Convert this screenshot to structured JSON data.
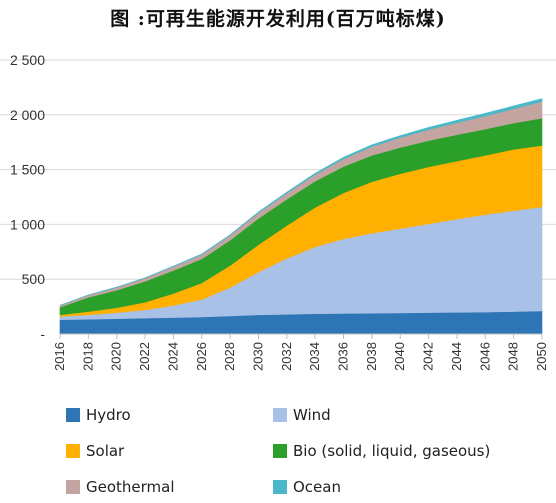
{
  "chart_data": {
    "type": "area",
    "stacked": true,
    "title": "图  :可再生能源开发利用(百万吨标煤)",
    "xlabel": "",
    "ylabel": "",
    "x": [
      2016,
      2018,
      2020,
      2022,
      2024,
      2026,
      2028,
      2030,
      2032,
      2034,
      2036,
      2038,
      2040,
      2042,
      2044,
      2046,
      2048,
      2050
    ],
    "x_tick_labels": [
      "2016",
      "2018",
      "2020",
      "2022",
      "2024",
      "2026",
      "2028",
      "2030",
      "2032",
      "2034",
      "2036",
      "2038",
      "2040",
      "2042",
      "2044",
      "2046",
      "2048",
      "2050"
    ],
    "ylim": [
      0,
      2500
    ],
    "y_tick_labels": [
      "-",
      "500",
      "1 000",
      "1 500",
      "2 000",
      "2 500"
    ],
    "y_tick_values": [
      0,
      500,
      1000,
      1500,
      2000,
      2500
    ],
    "grid": true,
    "legend_position": "bottom",
    "series": [
      {
        "name": "Hydro",
        "color": "#2e75b6",
        "values": [
          130,
          135,
          140,
          145,
          150,
          155,
          165,
          175,
          180,
          185,
          188,
          190,
          192,
          195,
          198,
          200,
          205,
          210
        ]
      },
      {
        "name": "Wind",
        "color": "#a9c1e6",
        "values": [
          30,
          40,
          55,
          75,
          110,
          160,
          260,
          390,
          510,
          610,
          680,
          730,
          770,
          810,
          850,
          890,
          920,
          950
        ]
      },
      {
        "name": "Solar",
        "color": "#ffb000",
        "values": [
          15,
          30,
          45,
          70,
          110,
          150,
          200,
          250,
          300,
          360,
          420,
          470,
          500,
          520,
          530,
          540,
          560,
          560
        ]
      },
      {
        "name": "Bio (solid, liquid, gaseous)",
        "color": "#2aa02a",
        "values": [
          70,
          130,
          160,
          190,
          210,
          220,
          230,
          240,
          240,
          240,
          240,
          240,
          240,
          240,
          240,
          240,
          240,
          250
        ]
      },
      {
        "name": "Geothermal",
        "color": "#c4a4a0",
        "values": [
          15,
          20,
          25,
          30,
          35,
          40,
          45,
          50,
          55,
          60,
          70,
          80,
          90,
          100,
          110,
          120,
          130,
          150
        ]
      },
      {
        "name": "Ocean",
        "color": "#4ab8c8",
        "values": [
          2,
          2,
          3,
          3,
          4,
          5,
          6,
          8,
          10,
          12,
          14,
          16,
          18,
          20,
          22,
          24,
          26,
          28
        ]
      }
    ]
  }
}
